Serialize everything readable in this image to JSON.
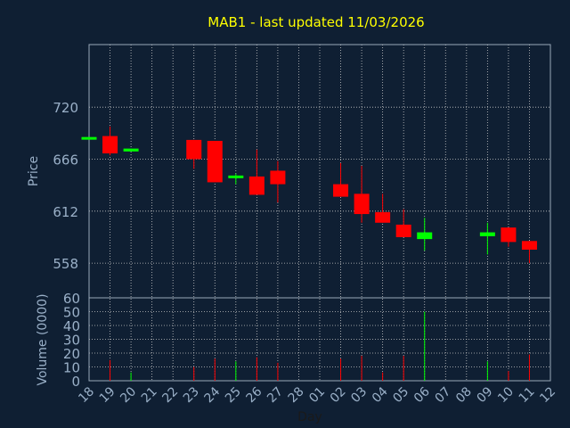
{
  "chart_data": [
    {
      "type": "candlestick",
      "title": "MAB1 - last updated 11/03/2026",
      "xlabel": "Day",
      "ylabel": "Price",
      "yticks": [
        558,
        612,
        666,
        720
      ],
      "ylim": [
        522,
        785
      ],
      "grid": true,
      "categories": [
        "18",
        "19",
        "20",
        "21",
        "22",
        "23",
        "24",
        "25",
        "26",
        "27",
        "28",
        "01",
        "02",
        "03",
        "04",
        "05",
        "06",
        "07",
        "08",
        "09",
        "10",
        "11",
        "12"
      ],
      "candles": [
        {
          "day": "18",
          "open": 689,
          "close": 689,
          "high": 689,
          "low": 689
        },
        {
          "day": "19",
          "open": 690,
          "close": 672,
          "high": 700,
          "low": 670
        },
        {
          "day": "20",
          "open": 674,
          "close": 677,
          "high": 677,
          "low": 674
        },
        {
          "day": "23",
          "open": 686,
          "close": 666,
          "high": 686,
          "low": 656
        },
        {
          "day": "24",
          "open": 685,
          "close": 642,
          "high": 685,
          "low": 642
        },
        {
          "day": "25",
          "open": 647,
          "close": 649,
          "high": 651,
          "low": 640
        },
        {
          "day": "26",
          "open": 648,
          "close": 629,
          "high": 676,
          "low": 629
        },
        {
          "day": "27",
          "open": 654,
          "close": 640,
          "high": 664,
          "low": 621
        },
        {
          "day": "02",
          "open": 640,
          "close": 627,
          "high": 662,
          "low": 627
        },
        {
          "day": "03",
          "open": 630,
          "close": 609,
          "high": 659,
          "low": 600
        },
        {
          "day": "04",
          "open": 611,
          "close": 600,
          "high": 630,
          "low": 600
        },
        {
          "day": "05",
          "open": 598,
          "close": 585,
          "high": 614,
          "low": 585
        },
        {
          "day": "06",
          "open": 583,
          "close": 590,
          "high": 605,
          "low": 571
        },
        {
          "day": "09",
          "open": 586,
          "close": 590,
          "high": 600,
          "low": 567
        },
        {
          "day": "10",
          "open": 595,
          "close": 580,
          "high": 595,
          "low": 575
        },
        {
          "day": "11",
          "open": 581,
          "close": 572,
          "high": 581,
          "low": 558
        }
      ],
      "colors": {
        "up": "#00ff00",
        "down": "#ff0000"
      }
    },
    {
      "type": "bar",
      "ylabel": "Volume (0000)",
      "yticks": [
        0,
        10,
        20,
        30,
        40,
        50,
        60
      ],
      "ylim": [
        0,
        60
      ],
      "grid": true,
      "volumes": [
        {
          "day": "19",
          "value": 15,
          "dir": "down"
        },
        {
          "day": "20",
          "value": 6,
          "dir": "up"
        },
        {
          "day": "23",
          "value": 10,
          "dir": "down"
        },
        {
          "day": "24",
          "value": 16,
          "dir": "down"
        },
        {
          "day": "25",
          "value": 14,
          "dir": "up"
        },
        {
          "day": "26",
          "value": 17,
          "dir": "down"
        },
        {
          "day": "27",
          "value": 13,
          "dir": "down"
        },
        {
          "day": "02",
          "value": 16,
          "dir": "down"
        },
        {
          "day": "03",
          "value": 18,
          "dir": "down"
        },
        {
          "day": "04",
          "value": 6,
          "dir": "down"
        },
        {
          "day": "05",
          "value": 18,
          "dir": "down"
        },
        {
          "day": "06",
          "value": 50,
          "dir": "up"
        },
        {
          "day": "09",
          "value": 14,
          "dir": "up"
        },
        {
          "day": "10",
          "value": 7,
          "dir": "down"
        },
        {
          "day": "11",
          "value": 19,
          "dir": "down"
        }
      ]
    }
  ],
  "theme": {
    "background": "#0f1f33",
    "title_color": "#ffff00",
    "axis_label_color": "#9ab0c8",
    "grid_color": "#c8c8c8",
    "frame_color": "#9aa8b8"
  }
}
